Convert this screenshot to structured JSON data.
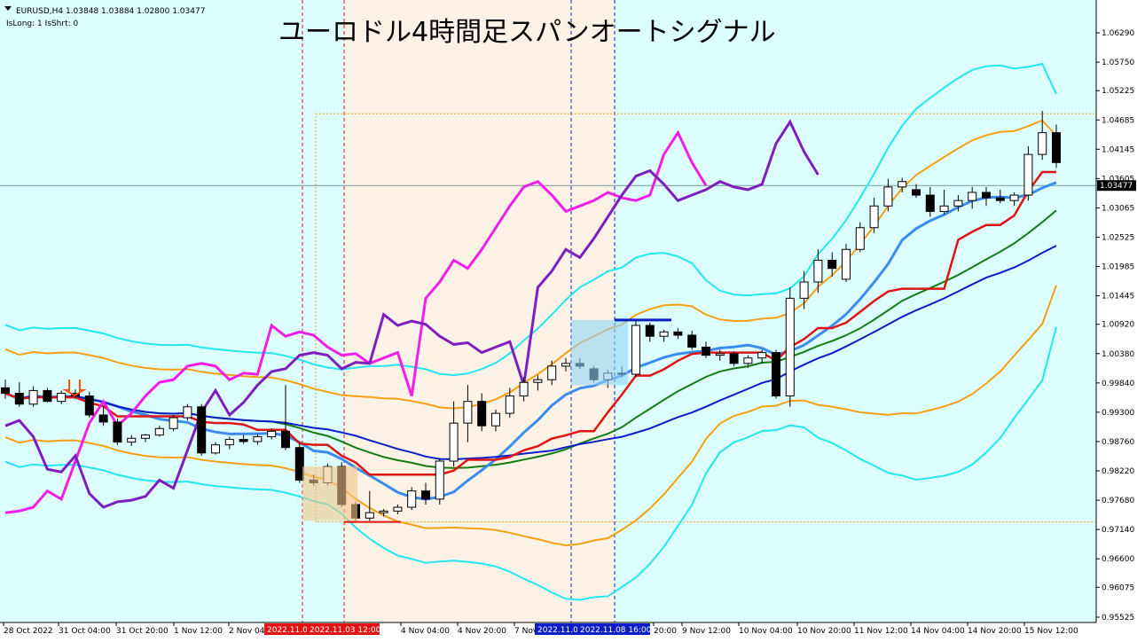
{
  "header": {
    "symbol_line": "EURUSD,H4  1.03848 1.03884 1.02800 1.03477",
    "indicator_line": "IsLong: 1 IsShrt: 0"
  },
  "title": "ユーロドル4時間足スパンオートシグナル",
  "colors": {
    "background": "#dcfefe",
    "shaded_zone": "#fdf2e6",
    "bb_outer": "#22e6f0",
    "bb_mid": "#f5a014",
    "bb_center": "#137d13",
    "ma_blue": "#3c8cf0",
    "ma_navy": "#0a1ec8",
    "signal_red": "#e01414",
    "span_magenta": "#f01ee6",
    "span_purple": "#7d1ebe",
    "current_price": "#000000"
  },
  "chart_data": {
    "type": "candlestick",
    "symbol": "EURUSD",
    "timeframe": "H4",
    "ohlc_header": {
      "open": 1.03848,
      "high": 1.03884,
      "low": 1.028,
      "close": 1.03477
    },
    "current_price_label": "1.03477",
    "ylim": [
      0.95525,
      1.0629
    ],
    "y_ticks": [
      "1.06290",
      "1.05750",
      "1.05225",
      "1.04685",
      "1.04145",
      "1.03605",
      "1.03065",
      "1.02525",
      "1.01985",
      "1.01445",
      "1.00920",
      "1.00380",
      "0.99840",
      "0.99300",
      "0.98760",
      "0.98220",
      "0.97680",
      "0.97140",
      "0.96600",
      "0.96075",
      "0.95525"
    ],
    "x_ticks": [
      "28 Oct 2022",
      "31 Oct 04:00",
      "31 Oct 20:00",
      "1 Nov 12:00",
      "2 Nov 04:00",
      "4 Nov 04:00",
      "4 Nov 20:00",
      "7 Nov 12:00",
      "20:00",
      "9 Nov 12:00",
      "10 Nov 04:00",
      "10 Nov 20:00",
      "11 Nov 12:00",
      "14 Nov 04:00",
      "14 Nov 20:00",
      "15 Nov 12:00"
    ],
    "vline_labels": [
      {
        "text": "2022.11.0",
        "color": "#e01414"
      },
      {
        "text": "2022.11.03 12:00",
        "color": "#e01414"
      },
      {
        "text": "2022.11.0",
        "color": "#0a1ec8"
      },
      {
        "text": "2022.11.08 16:00",
        "color": "#0a1ec8"
      }
    ],
    "candles": [
      {
        "t": "28 Oct 00:00",
        "o": 0.9975,
        "h": 0.999,
        "l": 0.9955,
        "c": 0.9965
      },
      {
        "t": "28 Oct 04:00",
        "o": 0.9965,
        "h": 0.9985,
        "l": 0.994,
        "c": 0.9945
      },
      {
        "t": "28 Oct 08:00",
        "o": 0.9945,
        "h": 0.9978,
        "l": 0.994,
        "c": 0.997
      },
      {
        "t": "28 Oct 12:00",
        "o": 0.997,
        "h": 0.9975,
        "l": 0.9948,
        "c": 0.995
      },
      {
        "t": "28 Oct 16:00",
        "o": 0.995,
        "h": 0.997,
        "l": 0.9945,
        "c": 0.9965
      },
      {
        "t": "31 Oct 00:00",
        "o": 0.9965,
        "h": 0.9972,
        "l": 0.9955,
        "c": 0.996
      },
      {
        "t": "31 Oct 04:00",
        "o": 0.996,
        "h": 0.9968,
        "l": 0.992,
        "c": 0.9925
      },
      {
        "t": "31 Oct 08:00",
        "o": 0.9925,
        "h": 0.994,
        "l": 0.9905,
        "c": 0.9912
      },
      {
        "t": "31 Oct 12:00",
        "o": 0.9912,
        "h": 0.9918,
        "l": 0.987,
        "c": 0.9875
      },
      {
        "t": "31 Oct 16:00",
        "o": 0.9875,
        "h": 0.9888,
        "l": 0.9868,
        "c": 0.9882
      },
      {
        "t": "31 Oct 20:00",
        "o": 0.9882,
        "h": 0.989,
        "l": 0.9875,
        "c": 0.9888
      },
      {
        "t": "1 Nov 00:00",
        "o": 0.9888,
        "h": 0.9905,
        "l": 0.9885,
        "c": 0.99
      },
      {
        "t": "1 Nov 04:00",
        "o": 0.99,
        "h": 0.9925,
        "l": 0.9895,
        "c": 0.992
      },
      {
        "t": "1 Nov 08:00",
        "o": 0.992,
        "h": 0.9945,
        "l": 0.9915,
        "c": 0.994
      },
      {
        "t": "1 Nov 12:00",
        "o": 0.994,
        "h": 0.9945,
        "l": 0.985,
        "c": 0.9855
      },
      {
        "t": "1 Nov 16:00",
        "o": 0.9855,
        "h": 0.9875,
        "l": 0.9852,
        "c": 0.987
      },
      {
        "t": "1 Nov 20:00",
        "o": 0.987,
        "h": 0.9885,
        "l": 0.9862,
        "c": 0.988
      },
      {
        "t": "2 Nov 00:00",
        "o": 0.988,
        "h": 0.9888,
        "l": 0.9872,
        "c": 0.9876
      },
      {
        "t": "2 Nov 04:00",
        "o": 0.9876,
        "h": 0.989,
        "l": 0.987,
        "c": 0.9885
      },
      {
        "t": "2 Nov 08:00",
        "o": 0.9885,
        "h": 0.99,
        "l": 0.988,
        "c": 0.9895
      },
      {
        "t": "2 Nov 12:00",
        "o": 0.9895,
        "h": 0.998,
        "l": 0.986,
        "c": 0.9865
      },
      {
        "t": "2 Nov 16:00",
        "o": 0.9865,
        "h": 0.9872,
        "l": 0.98,
        "c": 0.9805
      },
      {
        "t": "2 Nov 20:00",
        "o": 0.9805,
        "h": 0.9815,
        "l": 0.9795,
        "c": 0.98
      },
      {
        "t": "3 Nov 00:00",
        "o": 0.98,
        "h": 0.9835,
        "l": 0.9795,
        "c": 0.983
      },
      {
        "t": "3 Nov 04:00",
        "o": 0.983,
        "h": 0.9838,
        "l": 0.9755,
        "c": 0.976
      },
      {
        "t": "3 Nov 08:00",
        "o": 0.976,
        "h": 0.9765,
        "l": 0.973,
        "c": 0.9735
      },
      {
        "t": "3 Nov 12:00",
        "o": 0.9735,
        "h": 0.9785,
        "l": 0.973,
        "c": 0.9745
      },
      {
        "t": "3 Nov 16:00",
        "o": 0.9745,
        "h": 0.9752,
        "l": 0.9738,
        "c": 0.9748
      },
      {
        "t": "3 Nov 20:00",
        "o": 0.9748,
        "h": 0.976,
        "l": 0.9742,
        "c": 0.9755
      },
      {
        "t": "4 Nov 00:00",
        "o": 0.9755,
        "h": 0.9792,
        "l": 0.975,
        "c": 0.9785
      },
      {
        "t": "4 Nov 04:00",
        "o": 0.9785,
        "h": 0.98,
        "l": 0.976,
        "c": 0.977
      },
      {
        "t": "4 Nov 08:00",
        "o": 0.977,
        "h": 0.9845,
        "l": 0.976,
        "c": 0.984
      },
      {
        "t": "4 Nov 12:00",
        "o": 0.984,
        "h": 0.995,
        "l": 0.983,
        "c": 0.991
      },
      {
        "t": "4 Nov 16:00",
        "o": 0.991,
        "h": 0.998,
        "l": 0.9875,
        "c": 0.995
      },
      {
        "t": "4 Nov 20:00",
        "o": 0.995,
        "h": 0.9965,
        "l": 0.9895,
        "c": 0.9905
      },
      {
        "t": "7 Nov 00:00",
        "o": 0.9905,
        "h": 0.9935,
        "l": 0.9895,
        "c": 0.9928
      },
      {
        "t": "7 Nov 04:00",
        "o": 0.9928,
        "h": 0.9975,
        "l": 0.992,
        "c": 0.996
      },
      {
        "t": "7 Nov 08:00",
        "o": 0.996,
        "h": 0.9995,
        "l": 0.995,
        "c": 0.9985
      },
      {
        "t": "7 Nov 12:00",
        "o": 0.9985,
        "h": 0.9998,
        "l": 0.997,
        "c": 0.999
      },
      {
        "t": "7 Nov 16:00",
        "o": 0.999,
        "h": 1.0025,
        "l": 0.998,
        "c": 1.0015
      },
      {
        "t": "7 Nov 20:00",
        "o": 1.0015,
        "h": 1.003,
        "l": 1.0005,
        "c": 1.002
      },
      {
        "t": "8 Nov 00:00",
        "o": 1.002,
        "h": 1.003,
        "l": 1.001,
        "c": 1.0015
      },
      {
        "t": "8 Nov 04:00",
        "o": 1.001,
        "h": 1.0015,
        "l": 0.9985,
        "c": 0.999
      },
      {
        "t": "8 Nov 08:00",
        "o": 0.999,
        "h": 1.0008,
        "l": 0.9975,
        "c": 1.0002
      },
      {
        "t": "8 Nov 12:00",
        "o": 1.0002,
        "h": 1.0015,
        "l": 0.9995,
        "c": 1.0
      },
      {
        "t": "8 Nov 16:00",
        "o": 1.0,
        "h": 1.01,
        "l": 0.9995,
        "c": 1.009
      },
      {
        "t": "8 Nov 20:00",
        "o": 1.009,
        "h": 1.0095,
        "l": 1.006,
        "c": 1.007
      },
      {
        "t": "9 Nov 00:00",
        "o": 1.007,
        "h": 1.0082,
        "l": 1.006,
        "c": 1.0078
      },
      {
        "t": "9 Nov 04:00",
        "o": 1.0078,
        "h": 1.0085,
        "l": 1.0065,
        "c": 1.0072
      },
      {
        "t": "9 Nov 08:00",
        "o": 1.0072,
        "h": 1.008,
        "l": 1.0045,
        "c": 1.005
      },
      {
        "t": "9 Nov 12:00",
        "o": 1.005,
        "h": 1.006,
        "l": 1.003,
        "c": 1.0035
      },
      {
        "t": "9 Nov 16:00",
        "o": 1.0035,
        "h": 1.0045,
        "l": 1.0025,
        "c": 1.0038
      },
      {
        "t": "9 Nov 20:00",
        "o": 1.0038,
        "h": 1.0042,
        "l": 1.0015,
        "c": 1.002
      },
      {
        "t": "10 Nov 00:00",
        "o": 1.002,
        "h": 1.0035,
        "l": 1.0012,
        "c": 1.003
      },
      {
        "t": "10 Nov 04:00",
        "o": 1.003,
        "h": 1.0045,
        "l": 1.002,
        "c": 1.004
      },
      {
        "t": "10 Nov 08:00",
        "o": 1.004,
        "h": 1.0045,
        "l": 0.9955,
        "c": 0.996
      },
      {
        "t": "10 Nov 12:00",
        "o": 0.996,
        "h": 1.016,
        "l": 0.994,
        "c": 1.014
      },
      {
        "t": "10 Nov 16:00",
        "o": 1.014,
        "h": 1.019,
        "l": 1.012,
        "c": 1.017
      },
      {
        "t": "10 Nov 20:00",
        "o": 1.017,
        "h": 1.023,
        "l": 1.015,
        "c": 1.021
      },
      {
        "t": "11 Nov 00:00",
        "o": 1.021,
        "h": 1.0225,
        "l": 1.018,
        "c": 1.0195
      },
      {
        "t": "11 Nov 04:00",
        "o": 1.0175,
        "h": 1.024,
        "l": 1.017,
        "c": 1.023
      },
      {
        "t": "11 Nov 08:00",
        "o": 1.023,
        "h": 1.028,
        "l": 1.0225,
        "c": 1.027
      },
      {
        "t": "11 Nov 12:00",
        "o": 1.027,
        "h": 1.0325,
        "l": 1.026,
        "c": 1.031
      },
      {
        "t": "11 Nov 16:00",
        "o": 1.031,
        "h": 1.036,
        "l": 1.03,
        "c": 1.0345
      },
      {
        "t": "11 Nov 20:00",
        "o": 1.0345,
        "h": 1.0362,
        "l": 1.0335,
        "c": 1.0355
      },
      {
        "t": "14 Nov 00:00",
        "o": 1.034,
        "h": 1.035,
        "l": 1.0325,
        "c": 1.033
      },
      {
        "t": "14 Nov 04:00",
        "o": 1.033,
        "h": 1.0345,
        "l": 1.029,
        "c": 1.03
      },
      {
        "t": "14 Nov 08:00",
        "o": 1.03,
        "h": 1.034,
        "l": 1.0295,
        "c": 1.031
      },
      {
        "t": "14 Nov 12:00",
        "o": 1.031,
        "h": 1.033,
        "l": 1.03,
        "c": 1.032
      },
      {
        "t": "14 Nov 16:00",
        "o": 1.032,
        "h": 1.0345,
        "l": 1.0305,
        "c": 1.0335
      },
      {
        "t": "14 Nov 20:00",
        "o": 1.0335,
        "h": 1.0345,
        "l": 1.031,
        "c": 1.0325
      },
      {
        "t": "15 Nov 00:00",
        "o": 1.0325,
        "h": 1.034,
        "l": 1.0315,
        "c": 1.032
      },
      {
        "t": "15 Nov 04:00",
        "o": 1.032,
        "h": 1.0335,
        "l": 1.031,
        "c": 1.033
      },
      {
        "t": "15 Nov 08:00",
        "o": 1.033,
        "h": 1.042,
        "l": 1.032,
        "c": 1.0405
      },
      {
        "t": "15 Nov 12:00",
        "o": 1.0405,
        "h": 1.0485,
        "l": 1.0395,
        "c": 1.0445
      },
      {
        "t": "15 Nov 16:00",
        "o": 1.0445,
        "h": 1.046,
        "l": 1.038,
        "c": 1.039
      },
      {
        "t": "15 Nov 20:00",
        "o": 1.03848,
        "h": 1.03884,
        "l": 1.028,
        "c": 1.03477
      }
    ]
  }
}
